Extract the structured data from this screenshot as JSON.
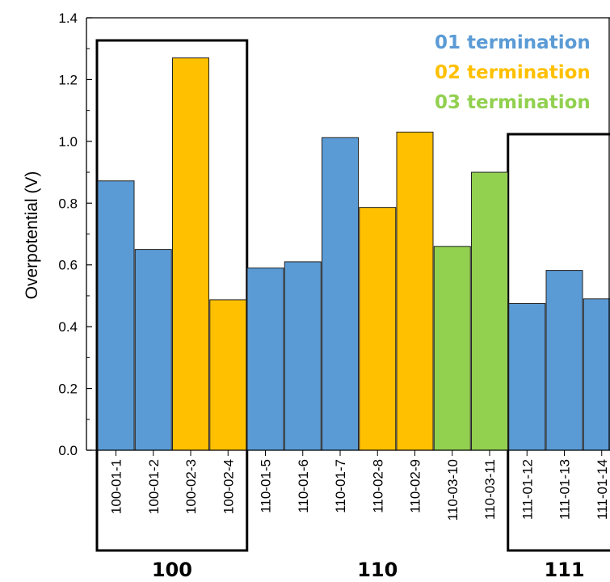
{
  "chart_data": {
    "type": "bar",
    "ylabel": "Overpotential (V)",
    "ylim": [
      0.0,
      1.4
    ],
    "yticks": [
      "0.0",
      "0.2",
      "0.4",
      "0.6",
      "0.8",
      "1.0",
      "1.2",
      "1.4"
    ],
    "categories": [
      "100-01-1",
      "100-01-2",
      "100-02-3",
      "100-02-4",
      "110-01-5",
      "110-01-6",
      "110-01-7",
      "110-02-8",
      "110-02-9",
      "110-03-10",
      "110-03-11",
      "111-01-12",
      "111-01-13",
      "111-01-14"
    ],
    "values": [
      0.872,
      0.65,
      1.27,
      0.487,
      0.59,
      0.61,
      1.012,
      0.786,
      1.03,
      0.66,
      0.9,
      0.475,
      0.582,
      0.49
    ],
    "terminations": [
      "01",
      "01",
      "02",
      "02",
      "01",
      "01",
      "01",
      "02",
      "02",
      "03",
      "03",
      "01",
      "01",
      "01"
    ],
    "legend": [
      {
        "key": "01",
        "label": "01 termination",
        "color": "#5B9BD5"
      },
      {
        "key": "02",
        "label": "02 termination",
        "color": "#FFC000"
      },
      {
        "key": "03",
        "label": "03 termination",
        "color": "#92D050"
      }
    ],
    "groups": [
      {
        "label": "100",
        "boxed": true
      },
      {
        "label": "110",
        "boxed": false
      },
      {
        "label": "111",
        "boxed": true
      }
    ],
    "legend_placement": "top-right",
    "grid": false
  }
}
